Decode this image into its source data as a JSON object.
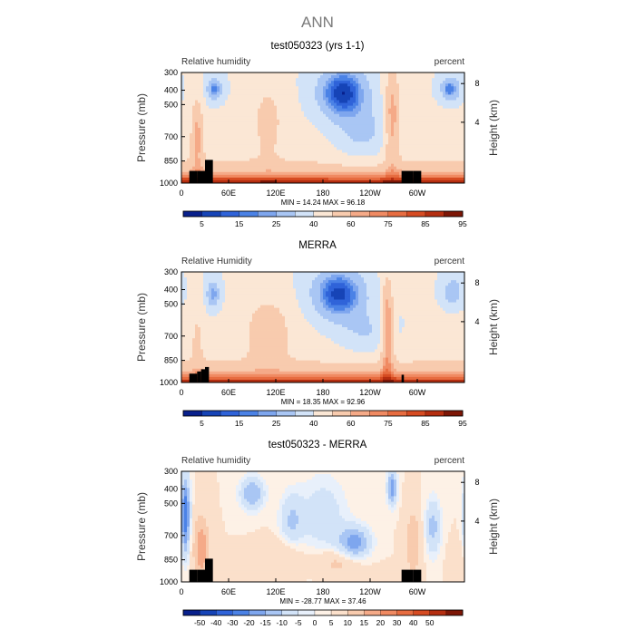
{
  "title": "ANN",
  "colors": {
    "rh_levels": [
      "#08208c",
      "#1644b7",
      "#2f63d9",
      "#4b82e6",
      "#7ea6ee",
      "#a9c6f4",
      "#d2e3f8",
      "#fbe7d5",
      "#f8cbae",
      "#f5aa88",
      "#f08a62",
      "#e76c40",
      "#d64b22",
      "#b52e10",
      "#7d1606"
    ],
    "diff_levels": [
      "#08208c",
      "#1644b7",
      "#2f63d9",
      "#4b82e6",
      "#7ea6ee",
      "#a9c6f4",
      "#d2e3f8",
      "#e8f0fb",
      "#fdf1e6",
      "#fbe0cb",
      "#f8cbae",
      "#f5aa88",
      "#f08a62",
      "#e76c40",
      "#d64b22",
      "#b52e10",
      "#7d1606"
    ],
    "terrain": "#000000"
  },
  "chart_data": [
    {
      "type": "heatmap",
      "title": "test050323 (yrs 1-1)",
      "left_label": "Relative humidity",
      "right_label": "percent",
      "ylabel": "Pressure (mb)",
      "y2label": "Height (km)",
      "yticks": [
        "300",
        "400",
        "500",
        "700",
        "850",
        "1000"
      ],
      "y2ticks": [
        "8",
        "4"
      ],
      "xticks": [
        "0",
        "60E",
        "120E",
        "180",
        "120W",
        "60W"
      ],
      "stats": "MIN =   14.24   MAX =   96.18",
      "colorbar_labels": [
        "5",
        "15",
        "25",
        "40",
        "60",
        "75",
        "85",
        "95"
      ],
      "field": "model"
    },
    {
      "type": "heatmap",
      "title": "MERRA",
      "left_label": "Relative Humidity",
      "right_label": "percent",
      "ylabel": "Pressure (mb)",
      "y2label": "Height (km)",
      "yticks": [
        "300",
        "400",
        "500",
        "700",
        "850",
        "1000"
      ],
      "y2ticks": [
        "8",
        "4"
      ],
      "xticks": [
        "0",
        "60E",
        "120E",
        "180",
        "120W",
        "60W"
      ],
      "stats": "MIN =   18.35   MAX =   92.96",
      "colorbar_labels": [
        "5",
        "15",
        "25",
        "40",
        "60",
        "75",
        "85",
        "95"
      ],
      "field": "obs"
    },
    {
      "type": "heatmap",
      "title": "test050323 - MERRA",
      "left_label": "Relative humidity",
      "right_label": "percent",
      "ylabel": "Pressure (mb)",
      "y2label": "Height (km)",
      "yticks": [
        "300",
        "400",
        "500",
        "700",
        "850",
        "1000"
      ],
      "y2ticks": [
        "8",
        "4"
      ],
      "xticks": [
        "0",
        "60E",
        "120E",
        "180",
        "120W",
        "60W"
      ],
      "stats": "MIN =  -28.77   MAX =   37.46",
      "colorbar_labels": [
        "-50",
        "-40",
        "-30",
        "-20",
        "-15",
        "-10",
        "-5",
        "0",
        "5",
        "10",
        "15",
        "20",
        "30",
        "40",
        "50"
      ],
      "field": "diff"
    }
  ]
}
